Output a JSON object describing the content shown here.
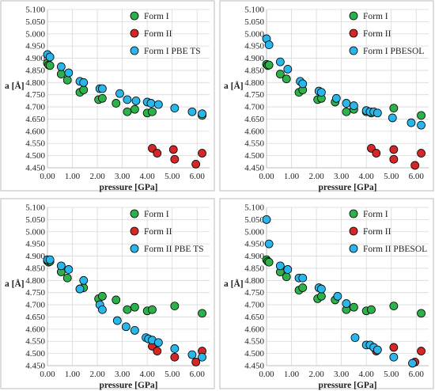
{
  "colors": {
    "form_i": "#2db14a",
    "form_ii": "#d62727",
    "form_calc": "#29b6ea",
    "grid": "#d9d9d9",
    "axis": "#bfbfbf",
    "text": "#222222",
    "border": "#bbbbbb"
  },
  "chart_data": [
    {
      "type": "scatter",
      "ylabel": "a [Å]",
      "xlabel": "pressure [GPa]",
      "xlim": [
        0,
        6.5
      ],
      "ylim": [
        4.45,
        5.1
      ],
      "xticks": [
        "0.00",
        "1.00",
        "2.00",
        "3.00",
        "4.00",
        "5.00",
        "6.00"
      ],
      "yticks": [
        "4.450",
        "4.500",
        "4.550",
        "4.600",
        "4.650",
        "4.700",
        "4.750",
        "4.800",
        "4.850",
        "4.900",
        "4.950",
        "5.000",
        "5.050",
        "5.100"
      ],
      "grid": true,
      "legend": "top-right",
      "series": [
        {
          "name": "Form I",
          "color_key": "form_i",
          "x": [
            0.0,
            0.05,
            0.1,
            0.55,
            0.8,
            1.3,
            1.45,
            2.05,
            2.2,
            2.75,
            3.2,
            3.5,
            4.0,
            4.2,
            6.2
          ],
          "y": [
            4.88,
            4.872,
            4.87,
            4.835,
            4.81,
            4.76,
            4.77,
            4.73,
            4.735,
            4.715,
            4.68,
            4.69,
            4.675,
            4.68,
            4.665
          ]
        },
        {
          "name": "Form II",
          "color_key": "form_ii",
          "x": [
            4.2,
            4.4,
            5.05,
            5.1,
            5.95,
            6.2
          ],
          "y": [
            4.53,
            4.51,
            4.525,
            4.485,
            4.465,
            4.51
          ]
        },
        {
          "name": "Form I PBE TS",
          "color_key": "form_calc",
          "x": [
            0.0,
            0.1,
            0.55,
            0.85,
            1.3,
            1.45,
            2.1,
            2.2,
            2.9,
            3.2,
            3.55,
            4.0,
            4.15,
            4.45,
            5.1,
            5.8,
            6.2
          ],
          "y": [
            4.915,
            4.905,
            4.865,
            4.84,
            4.805,
            4.8,
            4.775,
            4.775,
            4.755,
            4.73,
            4.725,
            4.72,
            4.715,
            4.71,
            4.695,
            4.68,
            4.672
          ]
        }
      ]
    },
    {
      "type": "scatter",
      "ylabel": "a [Å]",
      "xlabel": "pressure [GPa]",
      "xlim": [
        0,
        6.5
      ],
      "ylim": [
        4.45,
        5.1
      ],
      "xticks": [
        "0.00",
        "1.00",
        "2.00",
        "3.00",
        "4.00",
        "5.00",
        "6.00"
      ],
      "yticks": [
        "4.450",
        "4.500",
        "4.550",
        "4.600",
        "4.650",
        "4.700",
        "4.750",
        "4.800",
        "4.850",
        "4.900",
        "4.950",
        "5.000",
        "5.050",
        "5.100"
      ],
      "grid": true,
      "legend": "top-right",
      "series": [
        {
          "name": "Form I",
          "color_key": "form_i",
          "x": [
            0.0,
            0.05,
            0.1,
            0.55,
            0.8,
            1.3,
            1.45,
            2.05,
            2.2,
            2.75,
            3.2,
            3.5,
            4.0,
            4.2,
            5.1,
            6.2
          ],
          "y": [
            4.875,
            4.87,
            4.872,
            4.835,
            4.815,
            4.76,
            4.77,
            4.73,
            4.735,
            4.72,
            4.68,
            4.69,
            4.68,
            4.675,
            4.695,
            4.665
          ]
        },
        {
          "name": "Form II",
          "color_key": "form_ii",
          "x": [
            4.2,
            4.4,
            5.1,
            5.1,
            5.95,
            6.2
          ],
          "y": [
            4.53,
            4.51,
            4.525,
            4.485,
            4.46,
            4.51
          ]
        },
        {
          "name": "Form I PBESOL",
          "color_key": "form_calc",
          "x": [
            0.0,
            0.1,
            0.55,
            0.85,
            1.35,
            1.45,
            2.1,
            2.2,
            2.8,
            3.2,
            3.5,
            4.0,
            4.15,
            4.3,
            4.45,
            5.05,
            5.8,
            6.2
          ],
          "y": [
            4.98,
            4.955,
            4.885,
            4.855,
            4.805,
            4.795,
            4.765,
            4.76,
            4.735,
            4.715,
            4.705,
            4.685,
            4.68,
            4.68,
            4.675,
            4.655,
            4.635,
            4.625
          ]
        }
      ]
    },
    {
      "type": "scatter",
      "ylabel": "a [Å]",
      "xlabel": "pressure [GPa]",
      "xlim": [
        0,
        6.5
      ],
      "ylim": [
        4.45,
        5.1
      ],
      "xticks": [
        "0.00",
        "1.00",
        "2.00",
        "3.00",
        "4.00",
        "5.00",
        "6.00"
      ],
      "yticks": [
        "4.450",
        "4.500",
        "4.550",
        "4.600",
        "4.650",
        "4.700",
        "4.750",
        "4.800",
        "4.850",
        "4.900",
        "4.950",
        "5.000",
        "5.050",
        "5.100"
      ],
      "grid": true,
      "legend": "top-right",
      "series": [
        {
          "name": "Form I",
          "color_key": "form_i",
          "x": [
            0.0,
            0.05,
            0.1,
            0.55,
            0.8,
            1.3,
            1.45,
            2.05,
            2.2,
            2.75,
            3.2,
            3.5,
            4.0,
            4.2,
            5.1,
            6.2
          ],
          "y": [
            4.88,
            4.875,
            4.878,
            4.835,
            4.81,
            4.765,
            4.77,
            4.725,
            4.735,
            4.72,
            4.68,
            4.69,
            4.675,
            4.68,
            4.695,
            4.665
          ]
        },
        {
          "name": "Form II",
          "color_key": "form_ii",
          "x": [
            4.2,
            4.4,
            5.1,
            5.95,
            6.2
          ],
          "y": [
            4.53,
            4.51,
            4.485,
            4.465,
            4.51
          ]
        },
        {
          "name": "Form II PBE TS",
          "color_key": "form_calc",
          "x": [
            0.0,
            0.1,
            0.55,
            0.85,
            1.3,
            1.45,
            2.1,
            2.2,
            2.8,
            3.15,
            3.5,
            3.95,
            4.05,
            4.2,
            4.45,
            5.1,
            5.8,
            6.2
          ],
          "y": [
            4.885,
            4.885,
            4.86,
            4.845,
            4.765,
            4.8,
            4.7,
            4.68,
            4.635,
            4.61,
            4.595,
            4.565,
            4.56,
            4.555,
            4.545,
            4.52,
            4.495,
            4.485
          ]
        }
      ]
    },
    {
      "type": "scatter",
      "ylabel": "a [Å]",
      "xlabel": "pressure [GPa]",
      "xlim": [
        0,
        6.5
      ],
      "ylim": [
        4.45,
        5.1
      ],
      "xticks": [
        "0.00",
        "1.00",
        "2.00",
        "3.00",
        "4.00",
        "5.00",
        "6.00"
      ],
      "yticks": [
        "4.450",
        "4.500",
        "4.550",
        "4.600",
        "4.650",
        "4.700",
        "4.750",
        "4.800",
        "4.850",
        "4.900",
        "4.950",
        "5.000",
        "5.050",
        "5.100"
      ],
      "grid": true,
      "legend": "top-right",
      "series": [
        {
          "name": "Form I",
          "color_key": "form_i",
          "x": [
            0.0,
            0.05,
            0.1,
            0.55,
            0.8,
            1.3,
            1.45,
            2.05,
            2.2,
            2.75,
            3.2,
            3.5,
            4.0,
            4.2,
            5.1,
            6.2
          ],
          "y": [
            4.885,
            4.878,
            4.875,
            4.835,
            4.815,
            4.76,
            4.77,
            4.725,
            4.735,
            4.72,
            4.68,
            4.69,
            4.675,
            4.68,
            4.695,
            4.665
          ]
        },
        {
          "name": "Form II",
          "color_key": "form_ii",
          "x": [
            4.4,
            5.1,
            5.95,
            6.2
          ],
          "y": [
            4.51,
            4.525,
            4.465,
            4.51
          ]
        },
        {
          "name": "Form II PBESOL",
          "color_key": "form_calc",
          "x": [
            0.0,
            0.1,
            0.55,
            0.85,
            1.3,
            1.45,
            2.1,
            2.2,
            2.85,
            3.2,
            3.55,
            4.0,
            4.15,
            4.3,
            4.45,
            5.1,
            5.85
          ],
          "y": [
            5.05,
            4.95,
            4.86,
            4.845,
            4.81,
            4.81,
            4.77,
            4.765,
            4.735,
            4.705,
            4.565,
            4.535,
            4.535,
            4.525,
            4.515,
            4.485,
            4.46
          ]
        }
      ]
    }
  ]
}
